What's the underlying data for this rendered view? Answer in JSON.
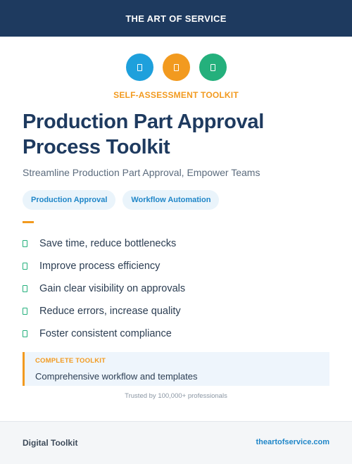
{
  "header": {
    "brand": "THE ART OF SERVICE"
  },
  "icons": [
    {
      "name": "document-icon",
      "color": "#1ea0dc"
    },
    {
      "name": "document-icon",
      "color": "#f29a1f"
    },
    {
      "name": "document-icon",
      "color": "#24b07c"
    }
  ],
  "hero": {
    "kicker": "SELF-ASSESSMENT TOOLKIT",
    "title": "Production Part Approval Process Toolkit",
    "subtitle": "Streamline Production Part Approval, Empower Teams"
  },
  "tags": [
    "Production Approval",
    "Workflow Automation"
  ],
  "benefits": [
    "Save time, reduce bottlenecks",
    "Improve process efficiency",
    "Gain clear visibility on approvals",
    "Reduce errors, increase quality",
    "Foster consistent compliance"
  ],
  "callout": {
    "label": "COMPLETE TOOLKIT",
    "text": "Comprehensive workflow and templates"
  },
  "trust": "Trusted by 100,000+ professionals",
  "footer": {
    "left": "Digital Toolkit",
    "right": "theartofservice.com"
  },
  "colors": {
    "navy": "#1e3a5f",
    "accent_orange": "#f29a1f",
    "accent_blue": "#1ea0dc",
    "accent_green": "#24b07c"
  }
}
